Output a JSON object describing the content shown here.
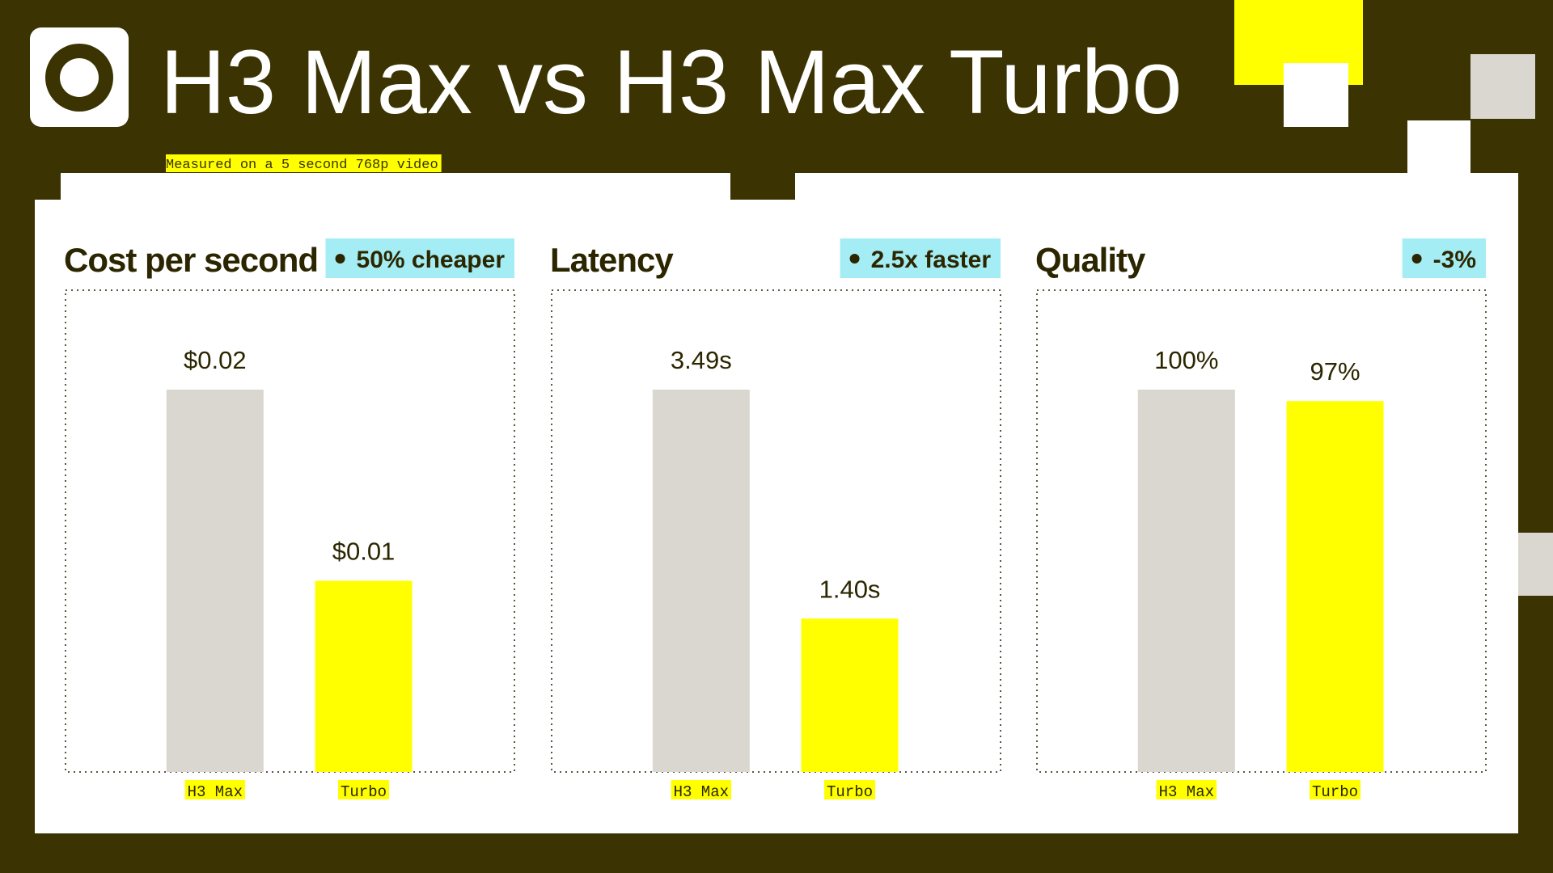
{
  "header": {
    "title": "H3 Max vs H3 Max Turbo",
    "subtitle": "Measured on a 5 second 768p video"
  },
  "chart_data": [
    {
      "type": "bar",
      "title": "Cost per second",
      "annotation": "50% cheaper",
      "categories": [
        "H3 Max",
        "Turbo"
      ],
      "values": [
        0.02,
        0.01
      ],
      "value_labels": [
        "$0.02",
        "$0.01"
      ],
      "colors": [
        "#d9d7cf",
        "#ffff00"
      ]
    },
    {
      "type": "bar",
      "title": "Latency",
      "annotation": "2.5x faster",
      "categories": [
        "H3 Max",
        "Turbo"
      ],
      "values": [
        3.49,
        1.4
      ],
      "value_labels": [
        "3.49s",
        "1.40s"
      ],
      "colors": [
        "#d9d7cf",
        "#ffff00"
      ]
    },
    {
      "type": "bar",
      "title": "Quality",
      "annotation": "-3%",
      "categories": [
        "H3 Max",
        "Turbo"
      ],
      "values": [
        100,
        97
      ],
      "value_labels": [
        "100%",
        "97%"
      ],
      "colors": [
        "#d9d7cf",
        "#ffff00"
      ]
    }
  ]
}
